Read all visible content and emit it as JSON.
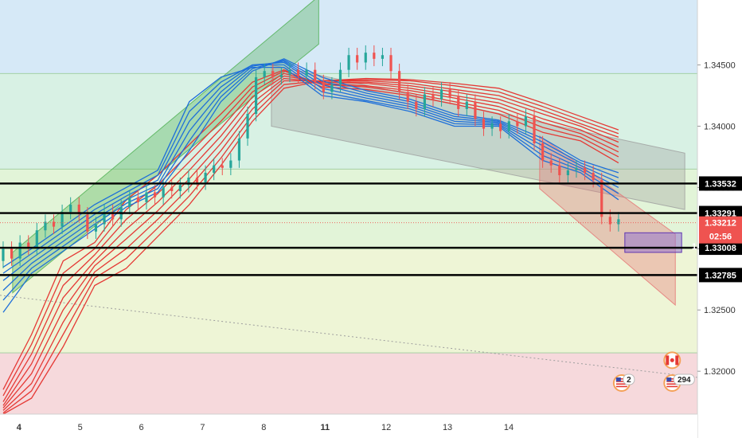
{
  "chart_data": {
    "type": "candlestick",
    "instrument_note": "",
    "x_ticks": [
      {
        "label": "4",
        "bold": true
      },
      {
        "label": "5",
        "bold": false
      },
      {
        "label": "6",
        "bold": false
      },
      {
        "label": "7",
        "bold": false
      },
      {
        "label": "8",
        "bold": false
      },
      {
        "label": "11",
        "bold": true
      },
      {
        "label": "12",
        "bold": false
      },
      {
        "label": "13",
        "bold": false
      },
      {
        "label": "14",
        "bold": false
      }
    ],
    "x_range": [
      3.7,
      14.75
    ],
    "y_ticks": [
      "1.32000",
      "1.32500",
      "1.33000",
      "1.33500",
      "1.34000",
      "1.34500"
    ],
    "ylim": [
      1.3165,
      1.3503
    ],
    "horizontal_levels": [
      {
        "price": 1.33532,
        "label": "1.33532",
        "color": "#000000"
      },
      {
        "price": 1.33291,
        "label": "1.33291",
        "color": "#000000"
      },
      {
        "price": 1.33008,
        "label": "1.33008",
        "color": "#000000"
      },
      {
        "price": 1.32785,
        "label": "1.32785",
        "color": "#000000"
      }
    ],
    "current_price": {
      "price": 1.33212,
      "label": "1.33212",
      "countdown": "02:56",
      "color": "#ef5350"
    },
    "price_axis_marker": "1",
    "zones": [
      {
        "from": 1.3443,
        "to": 1.3503,
        "color": "#d6e9f7"
      },
      {
        "from": 1.3365,
        "to": 1.3443,
        "color": "#d8f1e4"
      },
      {
        "from": 1.33,
        "to": 1.3365,
        "color": "#e2f4d8"
      },
      {
        "from": 1.3215,
        "to": 1.33,
        "color": "#eef5d6"
      },
      {
        "from": 1.3165,
        "to": 1.3215,
        "color": "#f6d9dc"
      }
    ],
    "zone_lines": [
      1.3443,
      1.3365,
      1.33,
      1.3215
    ],
    "channels": [
      {
        "points": [
          [
            3.9,
            1.3297
          ],
          [
            8.75,
            1.3506
          ],
          [
            8.75,
            1.3467
          ],
          [
            3.9,
            1.3264
          ]
        ],
        "color": "#4caf50"
      },
      {
        "points": [
          [
            8.0,
            1.345
          ],
          [
            14.55,
            1.3378
          ],
          [
            14.55,
            1.3332
          ],
          [
            8.0,
            1.34
          ]
        ],
        "color": "#9e9e9e"
      },
      {
        "points": [
          [
            12.25,
            1.3392
          ],
          [
            14.4,
            1.3312
          ],
          [
            14.4,
            1.3254
          ],
          [
            12.25,
            1.3349
          ]
        ],
        "color": "#e57373"
      }
    ],
    "target_box": {
      "x": [
        13.6,
        14.5
      ],
      "y": [
        1.3297,
        1.3313
      ],
      "color": "#9575cd"
    },
    "trend_line": {
      "points": [
        [
          3.7,
          1.3262
        ],
        [
          14.75,
          1.3195
        ]
      ],
      "color": "#9e9e9e"
    },
    "candles": [
      [
        1.329,
        1.33
      ],
      [
        1.33,
        1.3292
      ],
      [
        1.3292,
        1.3305
      ],
      [
        1.3305,
        1.3301
      ],
      [
        1.3301,
        1.3315
      ],
      [
        1.3315,
        1.3322
      ],
      [
        1.3322,
        1.3318
      ],
      [
        1.3318,
        1.333
      ],
      [
        1.333,
        1.3336
      ],
      [
        1.3336,
        1.3328
      ],
      [
        1.3328,
        1.3314
      ],
      [
        1.3314,
        1.332
      ],
      [
        1.332,
        1.333
      ],
      [
        1.333,
        1.3324
      ],
      [
        1.3324,
        1.3334
      ],
      [
        1.3334,
        1.3342
      ],
      [
        1.3342,
        1.3338
      ],
      [
        1.3338,
        1.3346
      ],
      [
        1.3346,
        1.3342
      ],
      [
        1.3342,
        1.335
      ],
      [
        1.335,
        1.3347
      ],
      [
        1.3347,
        1.3352
      ],
      [
        1.3352,
        1.3358
      ],
      [
        1.3358,
        1.3354
      ],
      [
        1.3354,
        1.3362
      ],
      [
        1.3362,
        1.3368
      ],
      [
        1.3368,
        1.3366
      ],
      [
        1.3366,
        1.3372
      ],
      [
        1.3372,
        1.339
      ],
      [
        1.339,
        1.341
      ],
      [
        1.341,
        1.344
      ],
      [
        1.344,
        1.3445
      ],
      [
        1.3445,
        1.344
      ],
      [
        1.344,
        1.3442
      ],
      [
        1.3442,
        1.3446
      ],
      [
        1.3446,
        1.3441
      ],
      [
        1.3441,
        1.3446
      ],
      [
        1.3446,
        1.3436
      ],
      [
        1.3436,
        1.3428
      ],
      [
        1.3428,
        1.3434
      ],
      [
        1.3434,
        1.3446
      ],
      [
        1.3446,
        1.3458
      ],
      [
        1.3458,
        1.3452
      ],
      [
        1.3452,
        1.346
      ],
      [
        1.346,
        1.3455
      ],
      [
        1.3455,
        1.3458
      ],
      [
        1.3458,
        1.3445
      ],
      [
        1.3445,
        1.3428
      ],
      [
        1.3428,
        1.342
      ],
      [
        1.342,
        1.3414
      ],
      [
        1.3414,
        1.3426
      ],
      [
        1.3426,
        1.3422
      ],
      [
        1.3422,
        1.343
      ],
      [
        1.343,
        1.3424
      ],
      [
        1.3424,
        1.3414
      ],
      [
        1.3414,
        1.342
      ],
      [
        1.342,
        1.3406
      ],
      [
        1.3406,
        1.3398
      ],
      [
        1.3398,
        1.3402
      ],
      [
        1.3402,
        1.3396
      ],
      [
        1.3396,
        1.3404
      ],
      [
        1.3404,
        1.34
      ],
      [
        1.34,
        1.3408
      ],
      [
        1.3408,
        1.3386
      ],
      [
        1.3386,
        1.3372
      ],
      [
        1.3372,
        1.3368
      ],
      [
        1.3368,
        1.336
      ],
      [
        1.336,
        1.3364
      ],
      [
        1.3364,
        1.3366
      ],
      [
        1.3366,
        1.3362
      ],
      [
        1.3362,
        1.3356
      ],
      [
        1.3356,
        1.3326
      ],
      [
        1.3326,
        1.332
      ],
      [
        1.332,
        1.3324
      ]
    ],
    "candle_x_range": [
      3.75,
      13.5
    ],
    "ma_blue": [
      [
        1.3285,
        1.33,
        1.3318,
        1.3336,
        1.335,
        1.3364,
        1.342,
        1.344,
        1.3448,
        1.3448,
        1.3425,
        1.342,
        1.3412,
        1.34,
        1.34,
        1.3372,
        1.3362,
        1.334
      ],
      [
        1.328,
        1.3296,
        1.3314,
        1.3332,
        1.3346,
        1.336,
        1.3412,
        1.3436,
        1.345,
        1.345,
        1.3428,
        1.3421,
        1.3414,
        1.3402,
        1.3401,
        1.3376,
        1.3364,
        1.3345
      ],
      [
        1.3274,
        1.3292,
        1.331,
        1.3328,
        1.3343,
        1.3356,
        1.3404,
        1.3432,
        1.345,
        1.3452,
        1.3431,
        1.3423,
        1.3416,
        1.3404,
        1.3402,
        1.338,
        1.3366,
        1.335
      ],
      [
        1.3266,
        1.3288,
        1.3306,
        1.3324,
        1.334,
        1.3352,
        1.3396,
        1.3428,
        1.3449,
        1.3453,
        1.3434,
        1.3425,
        1.3418,
        1.3406,
        1.3403,
        1.3384,
        1.3368,
        1.3354
      ],
      [
        1.3258,
        1.3284,
        1.3302,
        1.332,
        1.3337,
        1.3349,
        1.3388,
        1.3424,
        1.3447,
        1.3454,
        1.3437,
        1.3427,
        1.342,
        1.3408,
        1.3404,
        1.3387,
        1.337,
        1.3358
      ],
      [
        1.3248,
        1.328,
        1.3298,
        1.3316,
        1.3334,
        1.3346,
        1.338,
        1.342,
        1.3445,
        1.3455,
        1.344,
        1.3429,
        1.3422,
        1.341,
        1.3405,
        1.339,
        1.3372,
        1.3362
      ]
    ],
    "ma_red": [
      [
        1.3185,
        1.323,
        1.329,
        1.3305,
        1.334,
        1.336,
        1.3385,
        1.341,
        1.3436,
        1.3446,
        1.3432,
        1.343,
        1.3425,
        1.3418,
        1.341,
        1.3395,
        1.3388,
        1.337
      ],
      [
        1.318,
        1.3222,
        1.328,
        1.33,
        1.3332,
        1.3352,
        1.3378,
        1.3404,
        1.3432,
        1.3445,
        1.3434,
        1.3432,
        1.3427,
        1.342,
        1.3413,
        1.3399,
        1.3391,
        1.3375
      ],
      [
        1.3175,
        1.3214,
        1.327,
        1.3295,
        1.3324,
        1.3345,
        1.3371,
        1.3398,
        1.3428,
        1.3443,
        1.3435,
        1.3433,
        1.3429,
        1.3423,
        1.3416,
        1.3403,
        1.3394,
        1.3379
      ],
      [
        1.3172,
        1.3206,
        1.326,
        1.329,
        1.3316,
        1.3338,
        1.3364,
        1.3392,
        1.3424,
        1.3441,
        1.3436,
        1.3435,
        1.3431,
        1.3425,
        1.3419,
        1.3406,
        1.3397,
        1.3383
      ],
      [
        1.317,
        1.3198,
        1.325,
        1.3286,
        1.3308,
        1.3331,
        1.3357,
        1.3386,
        1.3419,
        1.3439,
        1.3436,
        1.3436,
        1.3433,
        1.3428,
        1.3422,
        1.341,
        1.34,
        1.3387
      ],
      [
        1.3168,
        1.319,
        1.324,
        1.3281,
        1.33,
        1.3324,
        1.335,
        1.338,
        1.3414,
        1.3437,
        1.3437,
        1.3437,
        1.3435,
        1.343,
        1.3425,
        1.3413,
        1.3402,
        1.3391
      ],
      [
        1.3166,
        1.3184,
        1.323,
        1.3276,
        1.3292,
        1.3317,
        1.3343,
        1.3374,
        1.3409,
        1.3434,
        1.3437,
        1.3438,
        1.3437,
        1.3433,
        1.3428,
        1.3416,
        1.3405,
        1.3394
      ],
      [
        1.3165,
        1.3178,
        1.322,
        1.327,
        1.3284,
        1.331,
        1.3336,
        1.3368,
        1.3404,
        1.3431,
        1.3437,
        1.3439,
        1.3438,
        1.3435,
        1.3431,
        1.3419,
        1.3408,
        1.3397
      ]
    ],
    "ma_x": [
      3.75,
      4.2,
      4.7,
      5.2,
      5.7,
      6.2,
      6.7,
      7.2,
      7.7,
      8.2,
      8.8,
      9.5,
      10.2,
      10.9,
      11.6,
      12.3,
      12.9,
      13.5
    ],
    "events": [
      {
        "x": 13.55,
        "y_frac": 0.925,
        "flag": "us",
        "count": "2"
      },
      {
        "x": 14.35,
        "y_frac": 0.87,
        "flag": "ca",
        "count": ""
      },
      {
        "x": 14.35,
        "y_frac": 0.925,
        "flag": "us",
        "count": "294"
      }
    ]
  }
}
